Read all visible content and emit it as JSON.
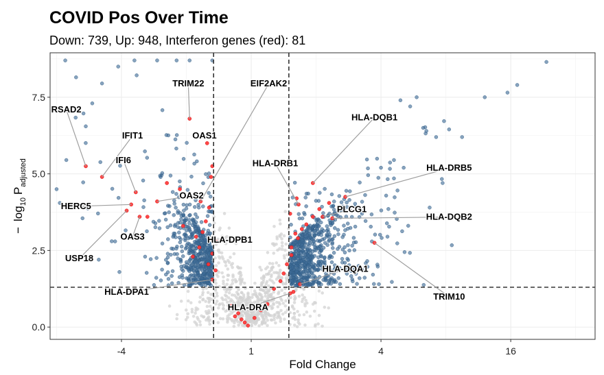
{
  "chart_data": {
    "type": "scatter",
    "title": "COVID Pos Over Time",
    "subtitle": "Down: 739, Up: 948, Interferon genes (red): 81",
    "xlabel": "Fold Change",
    "ylabel": "log10 Padjusted",
    "ylabel_parts": {
      "minus": "−",
      "log": "log",
      "log_base": "10",
      "p": "P",
      "p_sub": "adjusted"
    },
    "x_scale": "log2 fold change",
    "xlim": [
      -3.1,
      5.3
    ],
    "ylim": [
      -0.4,
      8.95
    ],
    "x_ticks": [
      {
        "value": -2,
        "label": "-4"
      },
      {
        "value": 0,
        "label": "1"
      },
      {
        "value": 2,
        "label": "4"
      },
      {
        "value": 4,
        "label": "16"
      }
    ],
    "y_ticks": [
      {
        "value": 0,
        "label": "0.0"
      },
      {
        "value": 2.5,
        "label": "2.5"
      },
      {
        "value": 5,
        "label": "5.0"
      },
      {
        "value": 7.5,
        "label": "7.5"
      }
    ],
    "thresholds": {
      "log2fc": [
        -0.58,
        0.58
      ],
      "neg_log10_p": 1.3
    },
    "counts": {
      "down": 739,
      "up": 948,
      "interferon": 81
    },
    "colors": {
      "significant": "#3d6a96",
      "not_significant": "#d3d3d3",
      "interferon": "#ff3333",
      "leader": "#9e9e9e",
      "threshold": "#333333"
    },
    "grid": true,
    "labeled_genes": [
      {
        "gene": "TRIM22",
        "x": -0.95,
        "y": 6.8,
        "label_x": -0.97,
        "label_y": 7.85
      },
      {
        "gene": "EIF2AK2",
        "x": -0.78,
        "y": 4.1,
        "label_x": 0.27,
        "label_y": 7.85
      },
      {
        "gene": "RSAD2",
        "x": -2.55,
        "y": 5.25,
        "label_x": -2.85,
        "label_y": 7.0
      },
      {
        "gene": "IFIT1",
        "x": -2.3,
        "y": 4.9,
        "label_x": -1.83,
        "label_y": 6.15
      },
      {
        "gene": "OAS1",
        "x": -0.68,
        "y": 6.0,
        "label_x": -0.72,
        "label_y": 6.15
      },
      {
        "gene": "IFI6",
        "x": -1.78,
        "y": 4.4,
        "label_x": -1.97,
        "label_y": 5.35
      },
      {
        "gene": "OAS2",
        "x": -1.45,
        "y": 4.1,
        "label_x": -0.92,
        "label_y": 4.2
      },
      {
        "gene": "HERC5",
        "x": -1.85,
        "y": 4.0,
        "label_x": -2.7,
        "label_y": 3.85
      },
      {
        "gene": "OAS3",
        "x": -1.72,
        "y": 3.6,
        "label_x": -1.83,
        "label_y": 2.85
      },
      {
        "gene": "USP18",
        "x": -1.92,
        "y": 3.8,
        "label_x": -2.65,
        "label_y": 2.15
      },
      {
        "gene": "HLA-DPB1",
        "x": -0.55,
        "y": 2.8,
        "label_x": -0.33,
        "label_y": 2.75
      },
      {
        "gene": "HLA-DPA1",
        "x": -0.6,
        "y": 1.55,
        "label_x": -1.92,
        "label_y": 1.05
      },
      {
        "gene": "HLA-DRA",
        "x": 0.6,
        "y": 1.1,
        "label_x": -0.05,
        "label_y": 0.55
      },
      {
        "gene": "HLA-DRB1",
        "x": 0.73,
        "y": 4.0,
        "label_x": 0.37,
        "label_y": 5.25
      },
      {
        "gene": "HLA-DQB1",
        "x": 0.95,
        "y": 4.7,
        "label_x": 1.9,
        "label_y": 6.75
      },
      {
        "gene": "PLCG1",
        "x": 1.1,
        "y": 3.6,
        "label_x": 1.55,
        "label_y": 3.75
      },
      {
        "gene": "HLA-DRB5",
        "x": 1.45,
        "y": 4.25,
        "label_x": 3.05,
        "label_y": 5.1
      },
      {
        "gene": "HLA-DQB2",
        "x": 1.25,
        "y": 3.55,
        "label_x": 3.05,
        "label_y": 3.5
      },
      {
        "gene": "HLA-DQA1",
        "x": 0.75,
        "y": 1.4,
        "label_x": 1.45,
        "label_y": 1.8
      },
      {
        "gene": "TRIM10",
        "x": 1.9,
        "y": 2.75,
        "label_x": 3.05,
        "label_y": 0.9
      }
    ]
  }
}
